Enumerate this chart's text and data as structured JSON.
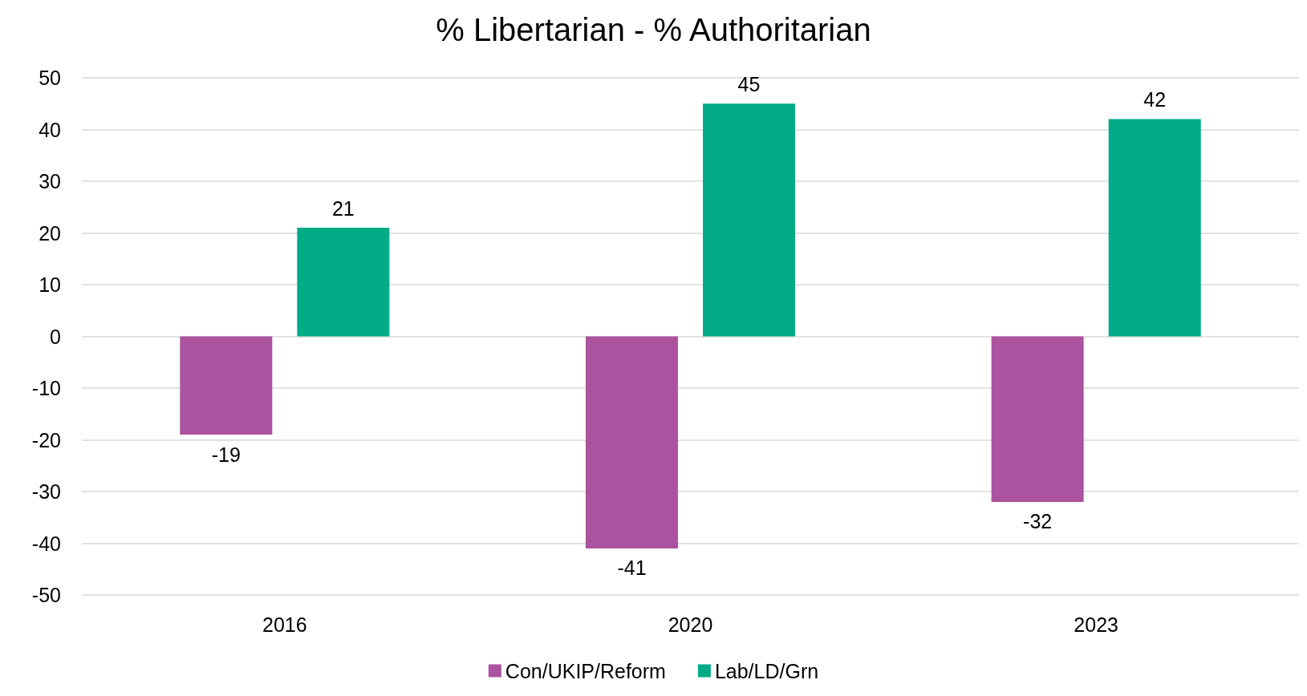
{
  "chart_data": {
    "type": "bar",
    "title": "% Libertarian - % Authoritarian",
    "categories": [
      "2016",
      "2020",
      "2023"
    ],
    "series": [
      {
        "name": "Con/UKIP/Reform",
        "color": "#ab539f",
        "values": [
          -19,
          -41,
          -32
        ]
      },
      {
        "name": "Lab/LD/Grn",
        "color": "#00ab86",
        "values": [
          21,
          45,
          42
        ]
      }
    ],
    "ylim": [
      -50,
      50
    ],
    "yticks": [
      -50,
      -40,
      -30,
      -20,
      -10,
      0,
      10,
      20,
      30,
      40,
      50
    ],
    "grid": "y",
    "legend": "bottom",
    "data_labels": true
  }
}
